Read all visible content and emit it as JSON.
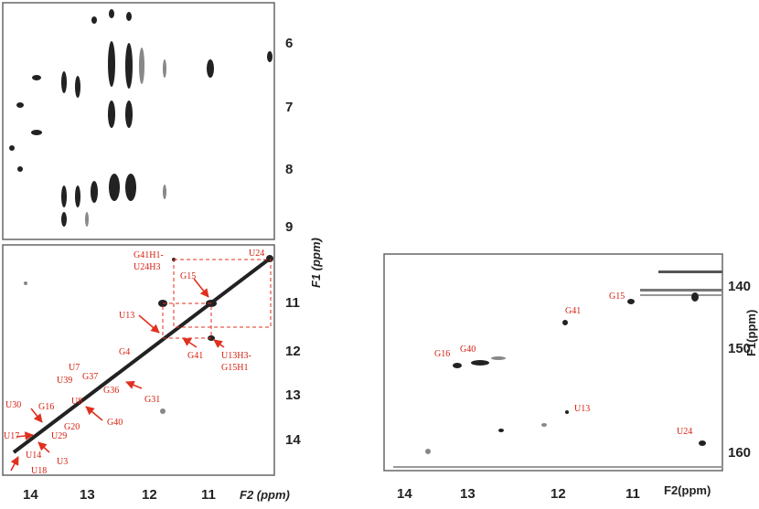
{
  "left_panel": {
    "y_ticks": [
      "6",
      "7",
      "8",
      "9",
      "11",
      "12",
      "13",
      "14"
    ],
    "y_axis_label": "F1 (ppm)",
    "x_ticks": [
      "14",
      "13",
      "12",
      "11"
    ],
    "x_axis_label": "F2 (ppm)",
    "peak_labels": [
      "G41H1-",
      "U24H3",
      "U24",
      "G15",
      "U13",
      "G41",
      "U13H3-",
      "G15H1",
      "G4",
      "U7",
      "G37",
      "U39",
      "G36",
      "G31",
      "G16",
      "U8",
      "U30",
      "G40",
      "G20",
      "U29",
      "U17",
      "U14",
      "U3",
      "U18"
    ]
  },
  "right_panel": {
    "y_ticks": [
      "140",
      "150",
      "160"
    ],
    "y_axis_label": "F1(ppm)",
    "x_ticks": [
      "14",
      "13",
      "12",
      "11"
    ],
    "x_axis_label": "F2(ppm)",
    "peak_labels": [
      "G15",
      "G41",
      "G16",
      "G40",
      "U13",
      "U24"
    ]
  }
}
